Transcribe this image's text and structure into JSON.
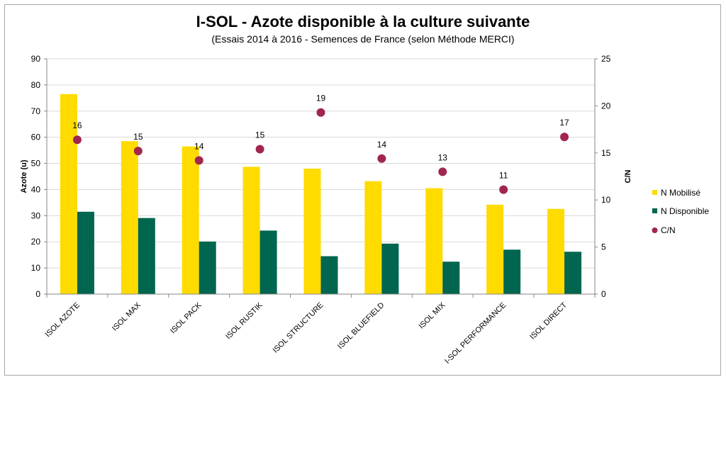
{
  "chart_data": {
    "type": "bar",
    "title": "I-SOL - Azote disponible à la culture suivante",
    "subtitle": "(Essais 2014 à 2016 - Semences de France (selon Méthode MERCI)",
    "categories": [
      "ISOL AZOTE",
      "ISOL MAX",
      "ISOL PACK",
      "ISOL RUSTIK",
      "ISOL STRUCTURE",
      "ISOL BLUEFIELD",
      "ISOL MIX",
      "I-SOL PERFORMANCE",
      "ISOL DIRECT"
    ],
    "series": [
      {
        "name": "N Mobilisé",
        "axis": "left",
        "kind": "bar",
        "color": "#ffdb00",
        "values": [
          76.5,
          58.5,
          56.5,
          48.7,
          48.0,
          43.2,
          40.5,
          34.2,
          32.6
        ]
      },
      {
        "name": "N Disponible",
        "axis": "left",
        "kind": "bar",
        "color": "#00664f",
        "values": [
          31.5,
          29.1,
          20.1,
          24.3,
          14.5,
          19.3,
          12.4,
          17.0,
          16.2
        ]
      },
      {
        "name": "C/N",
        "axis": "right",
        "kind": "scatter",
        "color": "#a1264f",
        "values": [
          16.4,
          15.2,
          14.2,
          15.4,
          19.3,
          14.4,
          13.0,
          11.1,
          16.7
        ],
        "labels": [
          "16",
          "15",
          "14",
          "15",
          "19",
          "14",
          "13",
          "11",
          "17"
        ]
      }
    ],
    "ylabel": "Azote (u)",
    "ylim": [
      0,
      90
    ],
    "yticks": [
      "0",
      "10",
      "20",
      "30",
      "40",
      "50",
      "60",
      "70",
      "80",
      "90"
    ],
    "y2label": "C/N",
    "y2lim": [
      0,
      25
    ],
    "y2ticks": [
      "0",
      "5",
      "10",
      "15",
      "20",
      "25"
    ],
    "legend_position": "right",
    "grid": true
  }
}
